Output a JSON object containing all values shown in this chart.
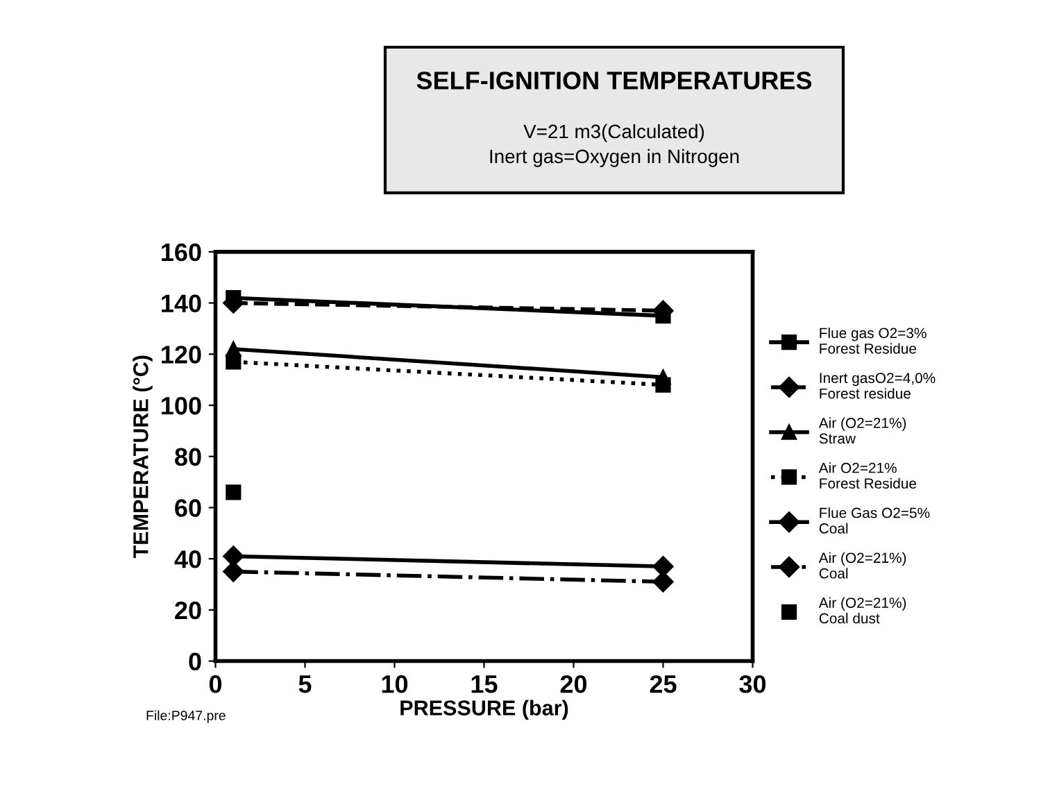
{
  "chart_data": {
    "type": "line",
    "title": "SELF-IGNITION TEMPERATURES",
    "subtitle": "V=21 m3(Calculated)\nInert gas=Oxygen in Nitrogen",
    "xlabel": "PRESSURE (bar)",
    "ylabel": "TEMPERATURE (°C)",
    "xlim": [
      0,
      30
    ],
    "xticks": [
      0,
      5,
      10,
      15,
      20,
      25,
      30
    ],
    "ylim": [
      0,
      160
    ],
    "yticks": [
      0,
      20,
      40,
      60,
      80,
      100,
      120,
      140,
      160
    ],
    "grid": false,
    "legend": "right",
    "annotations": [
      "File:P947.pre"
    ],
    "x": [
      1,
      25
    ],
    "series": [
      {
        "name": "Flue gas O2=3%\nForest Residue",
        "color": "#000000",
        "values": [
          142,
          135
        ],
        "marker": "square",
        "line_style": "solid"
      },
      {
        "name": "Inert gasO2=4,0%\nForest residue",
        "color": "#000000",
        "values": [
          140,
          137
        ],
        "marker": "diamond",
        "line_style": "dashed"
      },
      {
        "name": "Air (O2=21%)\nStraw",
        "color": "#000000",
        "values": [
          122,
          111
        ],
        "marker": "triangle",
        "line_style": "solid"
      },
      {
        "name": "Air O2=21%\nForest Residue",
        "color": "#000000",
        "values": [
          117,
          108
        ],
        "marker": "square",
        "line_style": "dotted"
      },
      {
        "name": "Flue Gas O2=5%\nCoal",
        "color": "#000000",
        "values": [
          41,
          37
        ],
        "marker": "diamond",
        "line_style": "solid"
      },
      {
        "name": "Air (O2=21%)\nCoal",
        "color": "#000000",
        "values": [
          35,
          31
        ],
        "marker": "diamond",
        "line_style": "dashdot"
      },
      {
        "name": "Air (O2=21%)\nCoal dust",
        "color": "#000000",
        "type": "scatter",
        "x": [
          1
        ],
        "values": [
          66
        ],
        "marker": "square"
      }
    ]
  }
}
